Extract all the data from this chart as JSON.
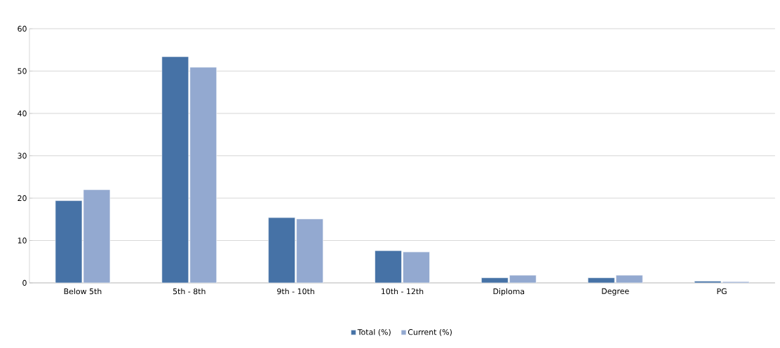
{
  "chart_data": {
    "type": "bar",
    "categories": [
      "Below 5th",
      "5th - 8th",
      "9th - 10th",
      "10th - 12th",
      "Diploma",
      "Degree",
      "PG"
    ],
    "series": [
      {
        "name": "Total (%)",
        "color": "#4672a6",
        "values": [
          19.4,
          53.4,
          15.4,
          7.6,
          1.2,
          1.2,
          0.4
        ]
      },
      {
        "name": "Current (%)",
        "color": "#93a9d0",
        "values": [
          22.0,
          50.9,
          15.1,
          7.3,
          1.8,
          1.8,
          0.3
        ]
      }
    ],
    "ylim": [
      0,
      60
    ],
    "yticks": [
      0,
      10,
      20,
      30,
      40,
      50,
      60
    ],
    "grid": "y",
    "legend": "bottom"
  }
}
